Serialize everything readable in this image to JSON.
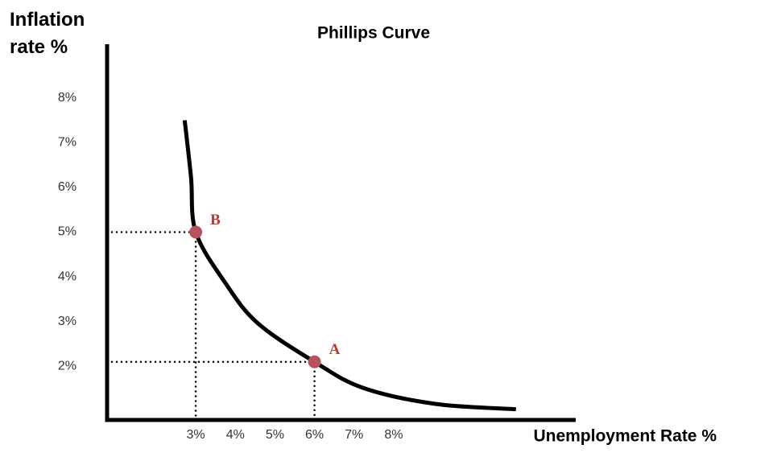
{
  "chart_data": {
    "type": "line",
    "title": "Phillips Curve",
    "x_label": "Unemployment Rate %",
    "y_label": "Inflation rate %",
    "xlim": [
      0.76,
      12.6
    ],
    "ylim": [
      0.8,
      9.2
    ],
    "xticks": [
      {
        "value": 3,
        "label": "3%"
      },
      {
        "value": 4,
        "label": "4%"
      },
      {
        "value": 5,
        "label": "5%"
      },
      {
        "value": 6,
        "label": "6%"
      },
      {
        "value": 7,
        "label": "7%"
      },
      {
        "value": 8,
        "label": "8%"
      }
    ],
    "yticks": [
      {
        "value": 2,
        "label": "2%"
      },
      {
        "value": 3,
        "label": "3%"
      },
      {
        "value": 4,
        "label": "4%"
      },
      {
        "value": 5,
        "label": "5%"
      },
      {
        "value": 6,
        "label": "6%"
      },
      {
        "value": 7,
        "label": "7%"
      },
      {
        "value": 8,
        "label": "8%"
      }
    ],
    "series": [
      {
        "color": "#000000",
        "x": [
          2.72,
          2.88,
          3,
          3.75,
          4.57,
          6,
          7.22,
          9.05,
          11.09
        ],
        "values": [
          7.5,
          6.23,
          5,
          3.86,
          2.96,
          2.1,
          1.52,
          1.16,
          1.04
        ]
      }
    ],
    "points": [
      {
        "label": "A",
        "x": 6,
        "y": 2.1,
        "color": "#b5525e"
      },
      {
        "label": "B",
        "x": 3,
        "y": 5,
        "color": "#b5525e"
      }
    ]
  }
}
